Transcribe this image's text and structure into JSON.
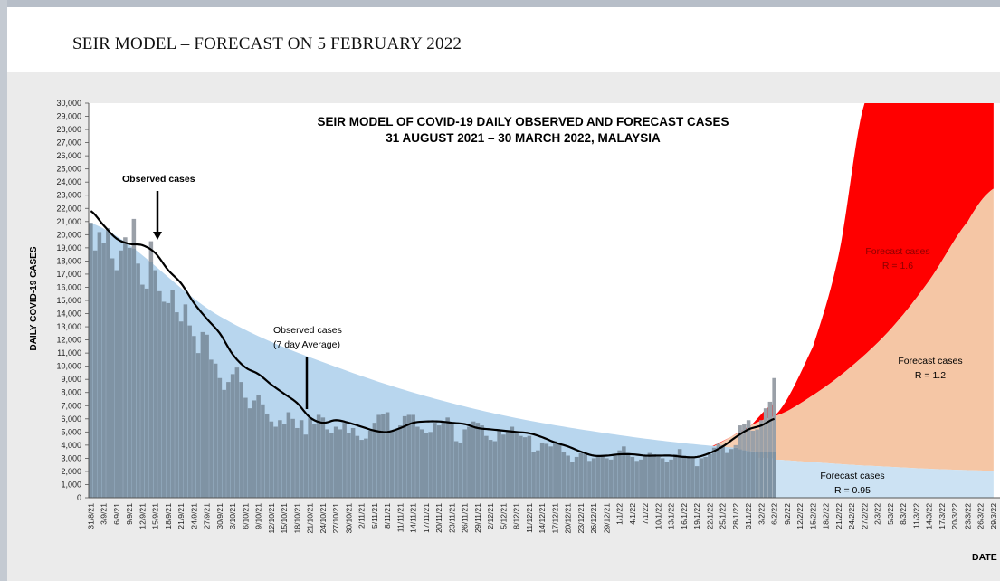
{
  "slide": {
    "title": "SEIR MODEL – FORECAST ON 5 FEBRUARY 2022"
  },
  "colors": {
    "observed_bars": "#7f93a4",
    "observed_above": "#9aa0a8",
    "fitted_band": "#b8d6ee",
    "forecast_095": "#cce2f3",
    "forecast_12": "#f5c6a5",
    "forecast_16": "#ff0000",
    "line": "#000000"
  },
  "chart_data": {
    "type": "bar",
    "title_line1": "SEIR MODEL OF COVID-19 DAILY OBSERVED AND FORECAST CASES",
    "title_line2": "31 AUGUST 2021 – 30 MARCH 2022, MALAYSIA",
    "ylabel": "DAILY COVID-19 CASES",
    "xlabel": "DATE",
    "ylim": [
      0,
      30000
    ],
    "ytick_step": 1000,
    "x_dates": [
      "31/8/21",
      "3/9/21",
      "6/9/21",
      "9/9/21",
      "12/9/21",
      "15/9/21",
      "18/9/21",
      "21/9/21",
      "24/9/21",
      "27/9/21",
      "30/9/21",
      "3/10/21",
      "6/10/21",
      "9/10/21",
      "12/10/21",
      "15/10/21",
      "18/10/21",
      "21/10/21",
      "24/10/21",
      "27/10/21",
      "30/10/21",
      "2/11/21",
      "5/11/21",
      "8/11/21",
      "11/11/21",
      "14/11/21",
      "17/11/21",
      "20/11/21",
      "23/11/21",
      "26/11/21",
      "29/11/21",
      "2/12/21",
      "5/12/21",
      "8/12/21",
      "11/12/21",
      "14/12/21",
      "17/12/21",
      "20/12/21",
      "23/12/21",
      "26/12/21",
      "29/12/21",
      "1/1/22",
      "4/1/22",
      "7/1/22",
      "10/1/22",
      "13/1/22",
      "16/1/22",
      "19/1/22",
      "22/1/22",
      "25/1/22",
      "28/1/22",
      "31/1/22",
      "3/2/22",
      "6/2/22",
      "9/2/22",
      "12/2/22",
      "15/2/22",
      "18/2/22",
      "21/2/22",
      "24/2/22",
      "27/2/22",
      "2/3/22",
      "5/3/22",
      "8/3/22",
      "11/3/22",
      "14/3/22",
      "17/3/22",
      "20/3/22",
      "23/3/22",
      "26/3/22",
      "29/3/22"
    ],
    "observed_daily": [
      20900,
      18800,
      20200,
      19400,
      20500,
      18200,
      17300,
      18800,
      19800,
      19000,
      21200,
      17800,
      16200,
      15900,
      19500,
      17300,
      15700,
      14900,
      14800,
      15800,
      14100,
      13400,
      14700,
      13100,
      12300,
      11000,
      12600,
      12400,
      10500,
      10200,
      9100,
      8200,
      8800,
      9400,
      9900,
      8800,
      7600,
      6800,
      7400,
      7800,
      7100,
      6400,
      5800,
      5400,
      5900,
      5600,
      6500,
      6000,
      5300,
      5900,
      4800,
      6100,
      5600,
      6300,
      6100,
      5200,
      4900,
      5400,
      5200,
      5700,
      4900,
      5300,
      4700,
      4400,
      4500,
      5100,
      5700,
      6300,
      6400,
      6500,
      5100,
      5200,
      5500,
      6200,
      6300,
      6300,
      5400,
      5200,
      4900,
      5000,
      5700,
      5500,
      5800,
      6100,
      5700,
      4300,
      4200,
      5200,
      5400,
      5800,
      5700,
      5500,
      4700,
      4400,
      4300,
      5100,
      4800,
      5000,
      5400,
      4900,
      4700,
      4600,
      4700,
      3500,
      3600,
      4200,
      4100,
      3900,
      4300,
      4200,
      3500,
      3200,
      2700,
      3100,
      3400,
      3300,
      2800,
      3000,
      3100,
      3200,
      3000,
      2900,
      3200,
      3600,
      3900,
      3400,
      3100,
      2800,
      2900,
      3200,
      3400,
      3300,
      3100,
      3000,
      2700,
      2900,
      3300,
      3700,
      3200,
      3100,
      3000,
      2400,
      3000,
      3100,
      3300,
      3800,
      4100,
      4000,
      3400,
      3700,
      4000,
      5500,
      5600,
      5900,
      5100,
      5200,
      5900,
      6800,
      7300,
      9100
    ],
    "observed_7day_avg": [
      {
        "x": "31/8/21",
        "y": 21800
      },
      {
        "x": "3/9/21",
        "y": 20700
      },
      {
        "x": "6/9/21",
        "y": 19700
      },
      {
        "x": "9/9/21",
        "y": 19300
      },
      {
        "x": "12/9/21",
        "y": 19200
      },
      {
        "x": "15/9/21",
        "y": 18600
      },
      {
        "x": "18/9/21",
        "y": 17300
      },
      {
        "x": "21/9/21",
        "y": 16300
      },
      {
        "x": "24/9/21",
        "y": 14800
      },
      {
        "x": "27/9/21",
        "y": 13600
      },
      {
        "x": "30/9/21",
        "y": 12500
      },
      {
        "x": "3/10/21",
        "y": 10900
      },
      {
        "x": "6/10/21",
        "y": 9900
      },
      {
        "x": "9/10/21",
        "y": 9400
      },
      {
        "x": "12/10/21",
        "y": 8600
      },
      {
        "x": "15/10/21",
        "y": 7900
      },
      {
        "x": "18/10/21",
        "y": 7200
      },
      {
        "x": "21/10/21",
        "y": 6100
      },
      {
        "x": "24/10/21",
        "y": 5700
      },
      {
        "x": "27/10/21",
        "y": 5900
      },
      {
        "x": "30/10/21",
        "y": 5700
      },
      {
        "x": "2/11/21",
        "y": 5400
      },
      {
        "x": "5/11/21",
        "y": 5100
      },
      {
        "x": "8/11/21",
        "y": 5000
      },
      {
        "x": "11/11/21",
        "y": 5300
      },
      {
        "x": "14/11/21",
        "y": 5700
      },
      {
        "x": "17/11/21",
        "y": 5800
      },
      {
        "x": "20/11/21",
        "y": 5800
      },
      {
        "x": "23/11/21",
        "y": 5700
      },
      {
        "x": "26/11/21",
        "y": 5600
      },
      {
        "x": "29/11/21",
        "y": 5300
      },
      {
        "x": "2/12/21",
        "y": 5200
      },
      {
        "x": "5/12/21",
        "y": 5100
      },
      {
        "x": "8/12/21",
        "y": 5000
      },
      {
        "x": "11/12/21",
        "y": 4900
      },
      {
        "x": "14/12/21",
        "y": 4600
      },
      {
        "x": "17/12/21",
        "y": 4200
      },
      {
        "x": "20/12/21",
        "y": 3900
      },
      {
        "x": "23/12/21",
        "y": 3500
      },
      {
        "x": "26/12/21",
        "y": 3200
      },
      {
        "x": "29/12/21",
        "y": 3200
      },
      {
        "x": "1/1/22",
        "y": 3300
      },
      {
        "x": "4/1/22",
        "y": 3300
      },
      {
        "x": "7/1/22",
        "y": 3200
      },
      {
        "x": "10/1/22",
        "y": 3200
      },
      {
        "x": "13/1/22",
        "y": 3200
      },
      {
        "x": "16/1/22",
        "y": 3100
      },
      {
        "x": "19/1/22",
        "y": 3100
      },
      {
        "x": "22/1/22",
        "y": 3400
      },
      {
        "x": "25/1/22",
        "y": 3900
      },
      {
        "x": "28/1/22",
        "y": 4600
      },
      {
        "x": "31/1/22",
        "y": 5200
      },
      {
        "x": "3/2/22",
        "y": 5500
      },
      {
        "x": "6/2/22",
        "y": 6000
      }
    ],
    "forecast": [
      {
        "name": "Forecast cases",
        "R_label": "R = 0.95",
        "points": [
          {
            "x": "6/2/22",
            "y": 2900
          },
          {
            "x": "15/2/22",
            "y": 2700
          },
          {
            "x": "24/2/22",
            "y": 2500
          },
          {
            "x": "5/3/22",
            "y": 2350
          },
          {
            "x": "14/3/22",
            "y": 2200
          },
          {
            "x": "23/3/22",
            "y": 2100
          },
          {
            "x": "29/3/22",
            "y": 2050
          }
        ]
      },
      {
        "name": "Forecast cases",
        "R_label": "R = 1.2",
        "points": [
          {
            "x": "6/2/22",
            "y": 6200
          },
          {
            "x": "15/2/22",
            "y": 7800
          },
          {
            "x": "24/2/22",
            "y": 10000
          },
          {
            "x": "5/3/22",
            "y": 12800
          },
          {
            "x": "14/3/22",
            "y": 16500
          },
          {
            "x": "23/3/22",
            "y": 21000
          },
          {
            "x": "29/3/22",
            "y": 23500
          }
        ]
      },
      {
        "name": "Forecast cases",
        "R_label": "R = 1.6",
        "points": [
          {
            "x": "6/2/22",
            "y": 6200
          },
          {
            "x": "15/2/22",
            "y": 11500
          },
          {
            "x": "21/2/22",
            "y": 18500
          },
          {
            "x": "27/2/22",
            "y": 30000
          }
        ]
      }
    ],
    "annotations": [
      {
        "text": "Observed cases"
      },
      {
        "text": "Observed cases"
      },
      {
        "text": "(7 day Average)"
      }
    ]
  }
}
